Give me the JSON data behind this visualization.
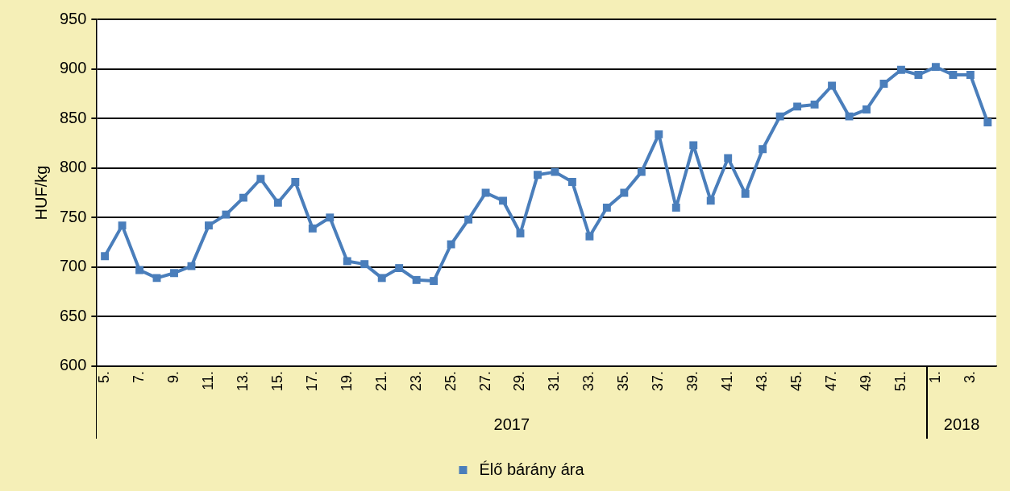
{
  "chart_data": {
    "type": "line",
    "ylabel": "HUF/kg",
    "categories": [
      "5.",
      null,
      "7.",
      null,
      "9.",
      null,
      "11.",
      null,
      "13.",
      null,
      "15.",
      null,
      "17.",
      null,
      "19.",
      null,
      "21.",
      null,
      "23.",
      null,
      "25.",
      null,
      "27.",
      null,
      "29.",
      null,
      "31.",
      null,
      "33.",
      null,
      "35.",
      null,
      "37.",
      null,
      "39.",
      null,
      "41.",
      null,
      "43.",
      null,
      "45.",
      null,
      "47.",
      null,
      "49.",
      null,
      "51.",
      null,
      "1.",
      null,
      "3.",
      null
    ],
    "series": [
      {
        "name": "Élő bárány ára",
        "color": "#4a7ebb",
        "values": [
          711,
          742,
          697,
          689,
          694,
          701,
          742,
          753,
          770,
          789,
          765,
          786,
          739,
          750,
          706,
          703,
          689,
          699,
          687,
          686,
          723,
          748,
          775,
          767,
          734,
          793,
          796,
          786,
          731,
          760,
          775,
          796,
          834,
          760,
          823,
          767,
          810,
          774,
          819,
          852,
          862,
          864,
          883,
          852,
          859,
          885,
          899,
          894,
          902,
          894,
          894,
          846
        ]
      }
    ],
    "annotations": [
      "2017",
      "2018"
    ],
    "ylim": [
      600,
      950
    ],
    "yticks": [
      600,
      650,
      700,
      750,
      800,
      850,
      900,
      950
    ],
    "grid": "y",
    "legend": "bottom",
    "marker": "square",
    "line_style": "solid"
  }
}
